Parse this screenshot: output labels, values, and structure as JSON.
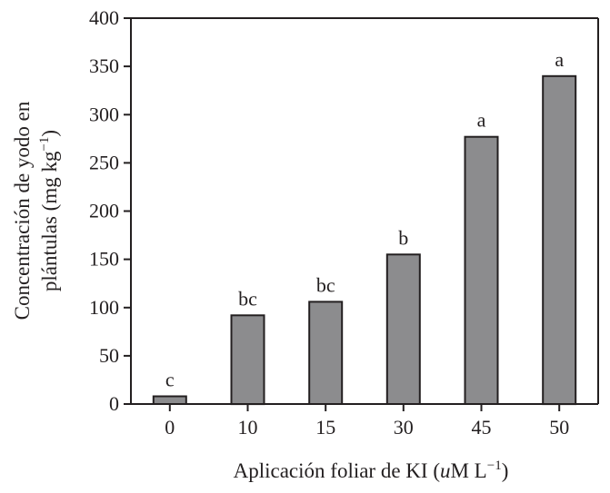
{
  "colors": {
    "bar_fill": "#8c8c8e",
    "bar_stroke": "#231f20",
    "axis": "#231f20",
    "text": "#231f20",
    "background": "#ffffff"
  },
  "chart_data": {
    "type": "bar",
    "categories": [
      "0",
      "10",
      "15",
      "30",
      "45",
      "50"
    ],
    "values": [
      8,
      92,
      106,
      155,
      277,
      340
    ],
    "labels": [
      "c",
      "bc",
      "bc",
      "b",
      "a",
      "a"
    ],
    "xlabel": "Aplicación foliar de KI (",
    "xlabel_unit_var": "u",
    "xlabel_unit_rest": "M L",
    "xlabel_exp": "−1",
    "xlabel_close": ")",
    "ylabel_line1": "Concentración de yodo en",
    "ylabel_line2": "plántulas (mg kg",
    "ylabel_exp": "−1",
    "ylabel_close": ")",
    "ylim": [
      0,
      400
    ],
    "yticks": [
      0,
      50,
      100,
      150,
      200,
      250,
      300,
      350,
      400
    ],
    "grid": false,
    "legend": "none"
  }
}
